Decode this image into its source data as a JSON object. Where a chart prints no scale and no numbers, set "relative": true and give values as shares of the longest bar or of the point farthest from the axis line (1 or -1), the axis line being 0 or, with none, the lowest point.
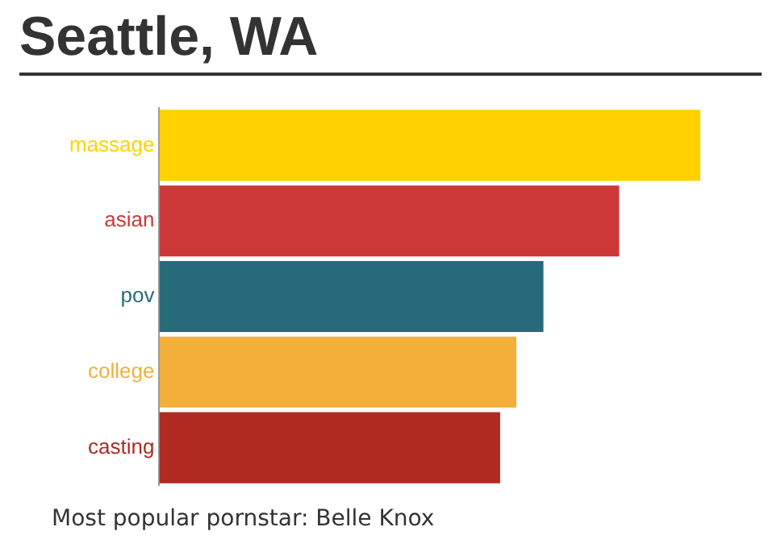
{
  "chart_data": {
    "type": "bar",
    "orientation": "horizontal",
    "relative": true,
    "title": "Seattle, WA",
    "categories": [
      "massage",
      "asian",
      "pov",
      "college",
      "casting"
    ],
    "values": [
      1,
      0.85,
      0.71,
      0.66,
      0.63
    ],
    "colors": [
      "#ffd200",
      "#cc3838",
      "#276b7a",
      "#f2b03a",
      "#b02a22"
    ],
    "annotations": [
      "Most popular pornstar: Belle Knox"
    ]
  }
}
